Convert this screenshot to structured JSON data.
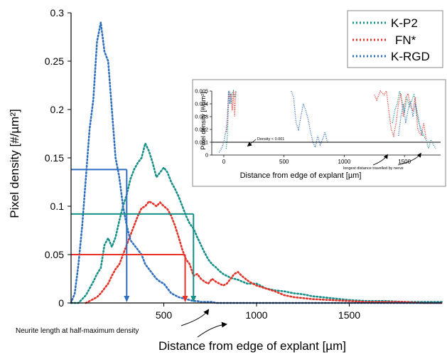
{
  "chart_data": [
    {
      "type": "line",
      "title": "",
      "xlabel": "Distance from edge of explant [µm]",
      "ylabel": "Pixel density [#/µm²]",
      "xlim": [
        0,
        2000
      ],
      "ylim": [
        0,
        0.3
      ],
      "x_ticks": [
        500,
        1000,
        1500
      ],
      "y_ticks": [
        0,
        0.05,
        0.1,
        0.15,
        0.2,
        0.25,
        0.3
      ],
      "x_tick_labels": [
        "500",
        "1000",
        "1500"
      ],
      "y_tick_labels": [
        "0",
        "0.05",
        "0.1",
        "0.15",
        "0.2",
        "0.25",
        "0.3"
      ],
      "legend_position": "top-right",
      "series": [
        {
          "name": "K-P2",
          "color": "#179089",
          "style": "dotted",
          "x": [
            0,
            40,
            60,
            80,
            100,
            120,
            140,
            160,
            180,
            200,
            220,
            240,
            260,
            280,
            300,
            320,
            340,
            360,
            380,
            400,
            420,
            440,
            460,
            480,
            500,
            520,
            540,
            560,
            580,
            600,
            620,
            640,
            660,
            680,
            700,
            720,
            740,
            760,
            780,
            800,
            820,
            840,
            860,
            880,
            900,
            950,
            1000,
            1050,
            1100,
            1150,
            1200,
            1250,
            1300,
            1350,
            1400,
            1500,
            1600,
            1700,
            1800,
            1900,
            2000
          ],
          "y": [
            0,
            0,
            0.004,
            0.008,
            0.015,
            0.022,
            0.03,
            0.036,
            0.06,
            0.067,
            0.058,
            0.068,
            0.085,
            0.1,
            0.112,
            0.128,
            0.138,
            0.145,
            0.15,
            0.165,
            0.157,
            0.145,
            0.13,
            0.135,
            0.14,
            0.135,
            0.125,
            0.118,
            0.11,
            0.1,
            0.09,
            0.082,
            0.077,
            0.068,
            0.06,
            0.052,
            0.045,
            0.04,
            0.037,
            0.033,
            0.03,
            0.028,
            0.026,
            0.025,
            0.024,
            0.02,
            0.02,
            0.015,
            0.013,
            0.012,
            0.01,
            0.009,
            0.007,
            0.006,
            0.005,
            0.003,
            0.002,
            0.002,
            0.001,
            0.001,
            0.001
          ]
        },
        {
          "name": "FN*",
          "color": "#e63127",
          "style": "dotted",
          "x": [
            80,
            100,
            120,
            140,
            160,
            180,
            200,
            220,
            240,
            260,
            280,
            300,
            320,
            340,
            360,
            380,
            400,
            420,
            440,
            460,
            480,
            500,
            520,
            540,
            560,
            580,
            600,
            620,
            640,
            660,
            680,
            700,
            720,
            740,
            760,
            780,
            800,
            820,
            840,
            860,
            880,
            900,
            920,
            940,
            960,
            980,
            1000,
            1050,
            1100,
            1150,
            1200,
            1250,
            1300,
            1400,
            1500,
            1600,
            1700,
            1800,
            1900,
            2000
          ],
          "y": [
            0,
            0.002,
            0.004,
            0.006,
            0.01,
            0.015,
            0.02,
            0.028,
            0.035,
            0.04,
            0.05,
            0.06,
            0.07,
            0.08,
            0.09,
            0.098,
            0.1,
            0.105,
            0.103,
            0.1,
            0.104,
            0.1,
            0.097,
            0.09,
            0.08,
            0.068,
            0.055,
            0.045,
            0.04,
            0.028,
            0.03,
            0.025,
            0.022,
            0.02,
            0.025,
            0.022,
            0.02,
            0.018,
            0.02,
            0.025,
            0.03,
            0.032,
            0.028,
            0.025,
            0.022,
            0.02,
            0.018,
            0.015,
            0.012,
            0.008,
            0.006,
            0.005,
            0.004,
            0.003,
            0.002,
            0.001,
            0.001,
            0.001,
            0,
            0
          ]
        },
        {
          "name": "K-RGD",
          "color": "#2f6fbf",
          "style": "dotted",
          "x": [
            0,
            20,
            40,
            60,
            80,
            100,
            120,
            140,
            160,
            180,
            200,
            220,
            240,
            260,
            280,
            300,
            320,
            340,
            360,
            380,
            400,
            420,
            440,
            460,
            480,
            500,
            520,
            540,
            560,
            580,
            600,
            620,
            640,
            660,
            680,
            700,
            720,
            740,
            760,
            780,
            800,
            850,
            900,
            1000,
            1100,
            1200,
            1300,
            1400,
            1500,
            1600,
            1700,
            1800,
            1900,
            2000
          ],
          "y": [
            0,
            0.01,
            0.04,
            0.08,
            0.13,
            0.18,
            0.21,
            0.27,
            0.29,
            0.26,
            0.25,
            0.2,
            0.15,
            0.13,
            0.1,
            0.08,
            0.065,
            0.06,
            0.055,
            0.05,
            0.04,
            0.035,
            0.03,
            0.025,
            0.022,
            0.02,
            0.015,
            0.01,
            0.008,
            0.006,
            0.005,
            0.004,
            0.003,
            0.002,
            0.002,
            0.001,
            0.001,
            0.001,
            0.001,
            0,
            0,
            0,
            0,
            0,
            0,
            0,
            0,
            0,
            0,
            0,
            0,
            0,
            0,
            0
          ]
        }
      ],
      "reference_lines": [
        {
          "series": "K-RGD",
          "y": 0.138,
          "x": 300
        },
        {
          "series": "K-P2",
          "y": 0.092,
          "x": 660
        },
        {
          "series": "FN*",
          "y": 0.05,
          "x": 615
        }
      ],
      "annotations": [
        "Neurite length at half-maximum density"
      ]
    },
    {
      "type": "line",
      "title": "",
      "xlabel": "Distance from edge of explant [µm]",
      "ylabel": "Pixel density [#/µm²]",
      "xlim": [
        -100,
        1800
      ],
      "ylim": [
        0,
        0.005
      ],
      "x_ticks": [
        0,
        500,
        1000,
        1500
      ],
      "y_ticks": [
        0,
        0.001,
        0.002,
        0.003,
        0.004,
        0.005
      ],
      "x_tick_labels": [
        "0",
        "500",
        "1000",
        "1500"
      ],
      "y_tick_labels": [
        "0",
        "0.001",
        "0.002",
        "0.003",
        "0.004",
        "0.005"
      ],
      "threshold_line": 0.001,
      "series": [
        {
          "name": "K-P2",
          "color": "#179089",
          "x": [
            20,
            30,
            40,
            50,
            60,
            70,
            80,
            90,
            100,
            1400,
            1420,
            1440,
            1460,
            1480,
            1500,
            1520,
            1540,
            1560,
            1580,
            1600,
            1620,
            1640,
            1660,
            1680,
            1700,
            1720,
            1740,
            1760
          ],
          "y": [
            0.0005,
            0.0015,
            0.004,
            0.005,
            0.004,
            0.0048,
            0.005,
            0.0045,
            0.005,
            0.0025,
            0.0035,
            0.004,
            0.005,
            0.0042,
            0.0033,
            0.0045,
            0.0038,
            0.0042,
            0.0048,
            0.0033,
            0.0025,
            0.002,
            0.0015,
            0.0012,
            0.0005,
            0.0012,
            0.0008,
            0.0005
          ]
        },
        {
          "name": "FN*",
          "color": "#e63127",
          "x": [
            20,
            30,
            40,
            50,
            60,
            70,
            80,
            90,
            100,
            1250,
            1270,
            1300,
            1330,
            1350,
            1370,
            1390,
            1410,
            1430,
            1450,
            1470,
            1490,
            1510,
            1530,
            1550,
            1570,
            1590,
            1610,
            1640,
            1660,
            1680
          ],
          "y": [
            0.0018,
            0.0025,
            0.005,
            0.0045,
            0.0048,
            0.0035,
            0.005,
            0.003,
            0.005,
            0.0047,
            0.0043,
            0.005,
            0.0047,
            0.005,
            0.0035,
            0.002,
            0.0015,
            0.0025,
            0.004,
            0.0048,
            0.003,
            0.0045,
            0.0048,
            0.0038,
            0.0035,
            0.0045,
            0.002,
            0.0015,
            0.0025,
            0.0012
          ]
        },
        {
          "name": "K-RGD",
          "color": "#2f6fbf",
          "x": [
            -40,
            -20,
            0,
            20,
            30,
            40,
            50,
            60,
            560,
            580,
            600,
            620,
            640,
            660,
            680,
            700,
            720,
            740,
            760,
            780,
            800,
            820,
            840,
            860,
            1450,
            1470,
            1490,
            1510,
            1530,
            1550,
            1570,
            1590,
            1610,
            1630,
            1650
          ],
          "y": [
            0.0002,
            0.0005,
            0.001,
            0.002,
            0.003,
            0.005,
            0.004,
            0.0048,
            0.005,
            0.0045,
            0.0025,
            0.002,
            0.003,
            0.004,
            0.0035,
            0.0028,
            0.0018,
            0.001,
            0.0006,
            0.0015,
            0.0008,
            0.0012,
            0.0018,
            0.001,
            0.0015,
            0.003,
            0.004,
            0.0025,
            0.0035,
            0.0042,
            0.003,
            0.004,
            0.0032,
            0.002,
            0.0015
          ]
        }
      ],
      "annotations": [
        "Density < 0.001",
        "longest distance travelled by nerve"
      ]
    }
  ]
}
